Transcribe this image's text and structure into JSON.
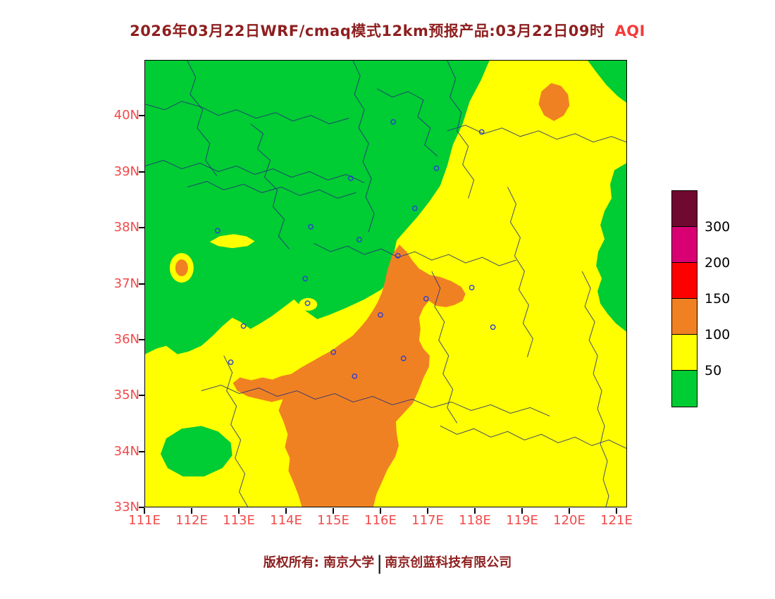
{
  "title": {
    "text": "2026年03月22日WRF/cmaq模式12km预报产品:03月22日09时",
    "pollutant_label": "AQI"
  },
  "map": {
    "lat_ticks": [
      "40N",
      "39N",
      "38N",
      "37N",
      "36N",
      "35N",
      "34N",
      "33N"
    ],
    "lon_ticks": [
      "111E",
      "112E",
      "113E",
      "114E",
      "115E",
      "116E",
      "117E",
      "118E",
      "119E",
      "120E",
      "121E"
    ],
    "lon_range": [
      111,
      121.2
    ],
    "lat_range": [
      33,
      41.0
    ],
    "city_markers_lonlat": [
      [
        116.27,
        39.9
      ],
      [
        118.15,
        39.72
      ],
      [
        117.19,
        39.07
      ],
      [
        115.37,
        38.89
      ],
      [
        114.52,
        38.02
      ],
      [
        116.73,
        38.35
      ],
      [
        112.54,
        37.95
      ],
      [
        115.55,
        37.79
      ],
      [
        116.37,
        37.5
      ],
      [
        114.4,
        37.09
      ],
      [
        114.45,
        36.65
      ],
      [
        116.0,
        36.44
      ],
      [
        116.97,
        36.73
      ],
      [
        117.94,
        36.93
      ],
      [
        113.09,
        36.24
      ],
      [
        112.82,
        35.59
      ],
      [
        115.0,
        35.77
      ],
      [
        115.45,
        35.34
      ],
      [
        116.49,
        35.66
      ],
      [
        118.39,
        36.22
      ]
    ]
  },
  "legend": {
    "boundary_labels": [
      "300",
      "200",
      "150",
      "100",
      "50"
    ],
    "colors": [
      "#70092f",
      "#d80073",
      "#ff0000",
      "#f08122",
      "#ffff00",
      "#00cc33"
    ]
  },
  "footer": {
    "left": "版权所有: 南京大学",
    "separator": "|",
    "right": "南京创蓝科技有限公司"
  },
  "chart_data": {
    "type": "heatmap",
    "title": "AQI filled-contour forecast map",
    "levels": [
      50,
      100,
      150,
      200,
      300
    ],
    "level_colors": {
      "0-50": "#00cc33",
      "50-100": "#ffff00",
      "100-150": "#f08122",
      "150-200": "#ff0000",
      "200-300": "#d80073",
      "300+": "#70092f"
    },
    "regions": [
      {
        "value_range": "0-50",
        "coverage": "large area over northwest quadrant (roughly 111-116.5E, 37-41N), strip along east edge near 36-38.5N/121E, small patch near 34N 112-113E, top-right corner"
      },
      {
        "value_range": "50-100",
        "coverage": "everything south and east of a diagonal boundary from ~118E,41N down to ~111E,35.7N, plus west-edge strip"
      },
      {
        "value_range": "100-150",
        "coverage": "diagonal band from ~116.5E,37.7N southwest and south to bottom edge ~114.3-115.9E,33N with west arm to ~112.9E,35.2N; small blobs near 119.6E,40.2N and 111.8E,37.3N"
      }
    ]
  }
}
